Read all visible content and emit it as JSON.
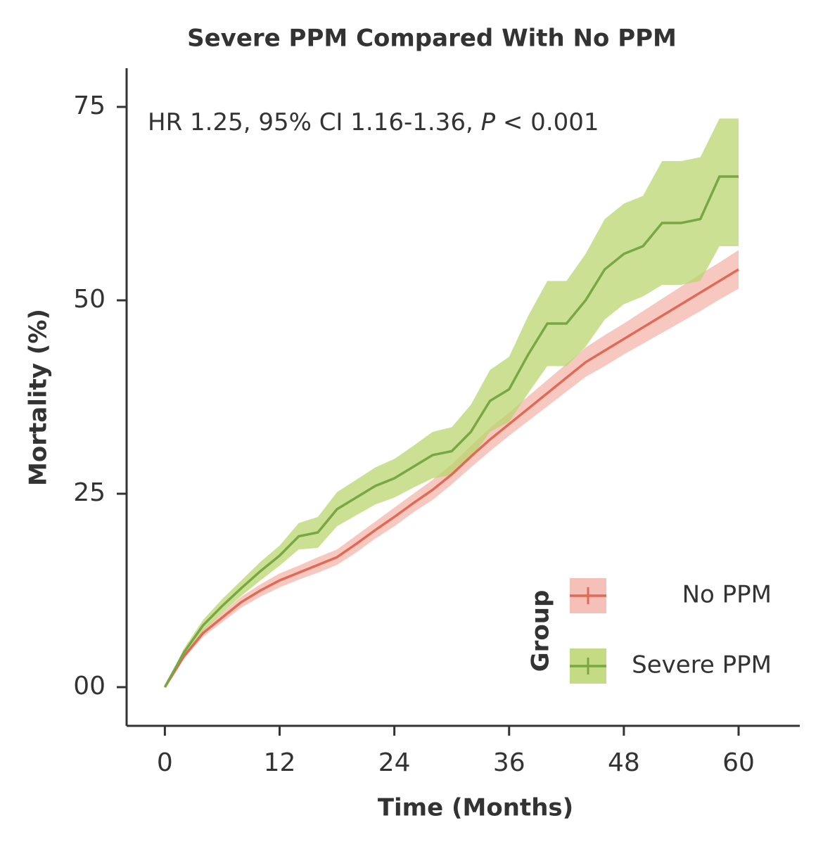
{
  "chart_data": {
    "type": "line",
    "title": "Severe PPM Compared With No PPM",
    "x_label": "Time (Months)",
    "y_label": "Mortality (%)",
    "annotation": [
      "HR 1.25, 95% CI 1.16-1.36, ",
      "P",
      " < 0.001"
    ],
    "legend_title": "Group",
    "legend_position": "lower right",
    "xlim": [
      -4,
      66.4
    ],
    "ylim": [
      -5,
      80
    ],
    "xticks": [
      0,
      12,
      24,
      36,
      48,
      60
    ],
    "yticks": [
      {
        "value": 0,
        "label": "00"
      },
      25,
      50,
      75
    ],
    "x": [
      0,
      2,
      4,
      6,
      8,
      10,
      12,
      14,
      16,
      18,
      20,
      22,
      24,
      26,
      28,
      30,
      32,
      34,
      36,
      38,
      40,
      42,
      44,
      46,
      48,
      50,
      52,
      54,
      56,
      58,
      60
    ],
    "series": [
      {
        "name": "No PPM",
        "color": "#e06a55",
        "band_color": "#f3b5ab",
        "values": [
          0,
          4,
          7,
          9,
          11,
          12.5,
          13.8,
          14.8,
          15.8,
          16.8,
          18.5,
          20.3,
          22,
          23.8,
          25.5,
          27.5,
          29.8,
          32,
          34,
          36,
          38,
          40,
          42,
          43.5,
          45,
          46.5,
          48,
          49.5,
          51,
          52.5,
          54
        ],
        "lower": [
          0,
          3.7,
          6.5,
          8.4,
          10.3,
          11.7,
          12.9,
          13.9,
          14.8,
          15.8,
          17.4,
          19.2,
          20.8,
          22.6,
          24.2,
          26.2,
          28.4,
          30.5,
          32.5,
          34.4,
          36.3,
          38.2,
          40.1,
          41.5,
          43,
          44.4,
          45.8,
          47.2,
          48.6,
          50.1,
          51.5
        ],
        "upper": [
          0,
          4.3,
          7.5,
          9.6,
          11.7,
          13.3,
          14.7,
          15.7,
          16.8,
          17.8,
          19.6,
          21.4,
          23.2,
          25,
          26.8,
          28.8,
          31.2,
          33.5,
          35.5,
          37.6,
          39.7,
          41.8,
          43.9,
          45.5,
          47,
          48.6,
          50.2,
          51.8,
          53.4,
          54.9,
          56.5
        ]
      },
      {
        "name": "Severe PPM",
        "color": "#78a843",
        "band_color": "#bad56f",
        "values": [
          0,
          4.5,
          8,
          10.5,
          12.8,
          15,
          17,
          19.5,
          20,
          23,
          24.5,
          26,
          27,
          28.5,
          30,
          30.5,
          33,
          37,
          38.5,
          43,
          47,
          47,
          50,
          54,
          56,
          57,
          60,
          60,
          60.5,
          66,
          66
        ],
        "lower": [
          0,
          4,
          7.3,
          9.6,
          11.8,
          13.8,
          15.7,
          17.8,
          18,
          20.8,
          22.2,
          23.6,
          24.5,
          25.8,
          27,
          27.4,
          29.5,
          33,
          34.3,
          38,
          41.5,
          41.5,
          44,
          47.5,
          49.5,
          50.5,
          52,
          52,
          52.5,
          57,
          57
        ],
        "upper": [
          0,
          5,
          8.7,
          11.4,
          13.8,
          16.2,
          18.3,
          21.2,
          22,
          25.2,
          26.8,
          28.4,
          29.5,
          31.2,
          33,
          33.6,
          36.5,
          41,
          42.7,
          48,
          52.5,
          52.5,
          56,
          60.5,
          62.5,
          63.5,
          68,
          68,
          68.5,
          73.5,
          73.5
        ]
      }
    ]
  }
}
